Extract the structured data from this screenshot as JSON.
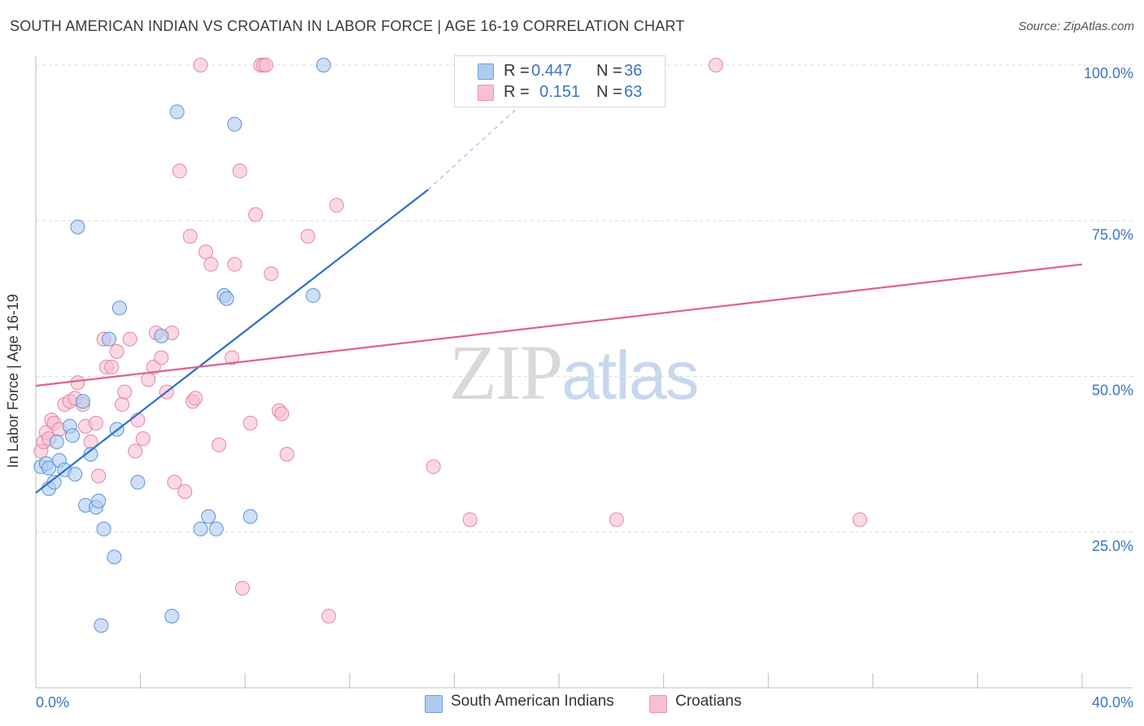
{
  "title": "SOUTH AMERICAN INDIAN VS CROATIAN IN LABOR FORCE | AGE 16-19 CORRELATION CHART",
  "source": "Source: ZipAtlas.com",
  "watermark": {
    "zip": "ZIP",
    "atlas": "atlas"
  },
  "legend_top": [
    {
      "r_label": "R =",
      "r_value": "0.447",
      "n_label": "N =",
      "n_value": "36",
      "color": "#aecbf0"
    },
    {
      "r_label": "R =",
      "r_value": "0.151",
      "n_label": "N =",
      "n_value": "63",
      "color": "#f7bfd1"
    }
  ],
  "legend_bottom": [
    {
      "label": "South American Indians",
      "color": "#aecbf0"
    },
    {
      "label": "Croatians",
      "color": "#f7bfd1"
    }
  ],
  "chart_data": {
    "type": "scatter",
    "title": "SOUTH AMERICAN INDIAN VS CROATIAN IN LABOR FORCE | AGE 16-19 CORRELATION CHART",
    "xlabel": "",
    "ylabel": "In Labor Force | Age 16-19",
    "xlim": [
      0,
      40
    ],
    "ylim": [
      0,
      102
    ],
    "x_tick_labels": [
      "0.0%",
      "40.0%"
    ],
    "y_tick_labels": [
      "25.0%",
      "50.0%",
      "75.0%",
      "100.0%"
    ],
    "y_ticks": [
      25,
      50,
      75,
      100
    ],
    "series": [
      {
        "name": "South American Indians",
        "color": "#5d93d8",
        "fill": "#aecbf0",
        "line_color": "#2b6fd0",
        "trend": {
          "x0": 0,
          "y0": 31.3,
          "x1": 15.0,
          "y1": 80.0,
          "dash_to_x": 20.2,
          "dash_to_y": 100
        },
        "points": [
          [
            0.2,
            35.5
          ],
          [
            0.4,
            36.0
          ],
          [
            0.5,
            35.3
          ],
          [
            0.5,
            32.0
          ],
          [
            0.7,
            33.0
          ],
          [
            0.8,
            39.5
          ],
          [
            0.9,
            36.5
          ],
          [
            1.1,
            35.0
          ],
          [
            1.3,
            42.0
          ],
          [
            1.4,
            40.5
          ],
          [
            1.5,
            34.3
          ],
          [
            1.8,
            46.0
          ],
          [
            1.9,
            29.3
          ],
          [
            2.1,
            37.5
          ],
          [
            2.3,
            29.0
          ],
          [
            2.4,
            30.0
          ],
          [
            2.6,
            25.5
          ],
          [
            2.8,
            56.0
          ],
          [
            3.0,
            21.0
          ],
          [
            3.1,
            41.5
          ],
          [
            3.2,
            61.0
          ],
          [
            3.9,
            33.0
          ],
          [
            4.8,
            56.5
          ],
          [
            5.2,
            11.5
          ],
          [
            5.4,
            92.5
          ],
          [
            6.3,
            25.5
          ],
          [
            6.6,
            27.5
          ],
          [
            6.9,
            25.5
          ],
          [
            7.2,
            63.0
          ],
          [
            7.3,
            62.5
          ],
          [
            7.6,
            90.5
          ],
          [
            8.2,
            27.5
          ],
          [
            10.6,
            63.0
          ],
          [
            11.0,
            100.0
          ],
          [
            1.6,
            74.0
          ],
          [
            2.5,
            10.0
          ]
        ]
      },
      {
        "name": "Croatians",
        "color": "#e884a6",
        "fill": "#f7bfd1",
        "line_color": "#e0608f",
        "trend": {
          "x0": 0,
          "y0": 48.5,
          "x1": 40,
          "y1": 68.0
        },
        "points": [
          [
            0.2,
            38.0
          ],
          [
            0.3,
            39.5
          ],
          [
            0.4,
            41.0
          ],
          [
            0.5,
            40.0
          ],
          [
            0.6,
            43.0
          ],
          [
            0.7,
            42.5
          ],
          [
            0.9,
            41.5
          ],
          [
            1.1,
            45.5
          ],
          [
            1.3,
            46.0
          ],
          [
            1.5,
            46.5
          ],
          [
            1.6,
            49.0
          ],
          [
            1.8,
            45.5
          ],
          [
            1.9,
            42.0
          ],
          [
            2.1,
            39.5
          ],
          [
            2.3,
            42.5
          ],
          [
            2.4,
            34.0
          ],
          [
            2.6,
            56.0
          ],
          [
            2.7,
            51.5
          ],
          [
            2.9,
            51.5
          ],
          [
            3.1,
            54.0
          ],
          [
            3.3,
            45.5
          ],
          [
            3.4,
            47.5
          ],
          [
            3.6,
            56.0
          ],
          [
            3.8,
            38.0
          ],
          [
            3.9,
            43.0
          ],
          [
            4.1,
            40.0
          ],
          [
            4.3,
            49.5
          ],
          [
            4.5,
            51.5
          ],
          [
            4.6,
            57.0
          ],
          [
            4.8,
            53.0
          ],
          [
            5.0,
            47.5
          ],
          [
            5.2,
            57.0
          ],
          [
            5.3,
            33.0
          ],
          [
            5.5,
            83.0
          ],
          [
            5.7,
            31.5
          ],
          [
            5.9,
            72.5
          ],
          [
            6.0,
            46.0
          ],
          [
            6.1,
            46.5
          ],
          [
            6.3,
            100.0
          ],
          [
            6.5,
            70.0
          ],
          [
            6.7,
            68.0
          ],
          [
            7.0,
            39.0
          ],
          [
            7.5,
            53.0
          ],
          [
            7.6,
            68.0
          ],
          [
            7.8,
            83.0
          ],
          [
            7.9,
            16.0
          ],
          [
            8.2,
            42.5
          ],
          [
            8.4,
            76.0
          ],
          [
            8.6,
            100.0
          ],
          [
            8.7,
            100.0
          ],
          [
            8.8,
            100.0
          ],
          [
            9.0,
            66.5
          ],
          [
            9.3,
            44.5
          ],
          [
            9.6,
            37.5
          ],
          [
            10.4,
            72.5
          ],
          [
            11.5,
            77.5
          ],
          [
            11.2,
            11.5
          ],
          [
            15.2,
            35.5
          ],
          [
            16.6,
            27.0
          ],
          [
            22.2,
            27.0
          ],
          [
            26.0,
            100.0
          ],
          [
            31.5,
            27.0
          ],
          [
            9.4,
            44.0
          ]
        ]
      }
    ]
  }
}
